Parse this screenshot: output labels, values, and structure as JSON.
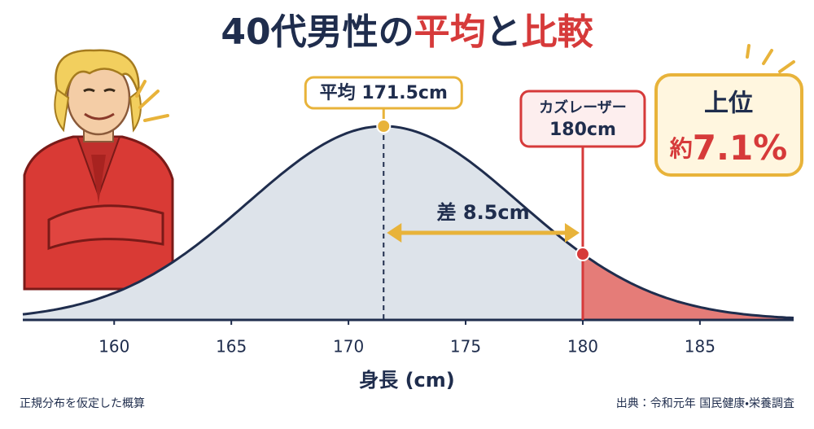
{
  "chart_data": {
    "type": "normal",
    "title": [
      {
        "text": "40代男性の",
        "color": "#1f2d4d"
      },
      {
        "text": "平均",
        "color": "#d63a3a"
      },
      {
        "text": "と",
        "color": "#1f2d4d"
      },
      {
        "text": "比較",
        "color": "#d63a3a"
      }
    ],
    "xlabel": "身長 (cm)",
    "xlim": [
      156.1,
      189
    ],
    "xticks": [
      160,
      165,
      170,
      175,
      180,
      185
    ],
    "curve_color": "#1f2d4d",
    "fill_color": "#dde3ea",
    "tail_color": "#e57c78",
    "mean": {
      "value": 171.5,
      "label": "平均 171.5cm",
      "color": "#e8b33a"
    },
    "marker": {
      "value": 180,
      "label": [
        "カズレーザー",
        "180cm"
      ],
      "color": "#d63a3a"
    },
    "difference": {
      "value": 8.5,
      "label": "差 8.5cm",
      "color": "#e8b33a"
    },
    "rank": {
      "value": 7.1,
      "prefix": "上位",
      "label": [
        "約",
        "7.1%"
      ]
    },
    "note": "正規分布を仮定した概算",
    "source": "出典：令和元年 国民健康・栄養調査"
  }
}
